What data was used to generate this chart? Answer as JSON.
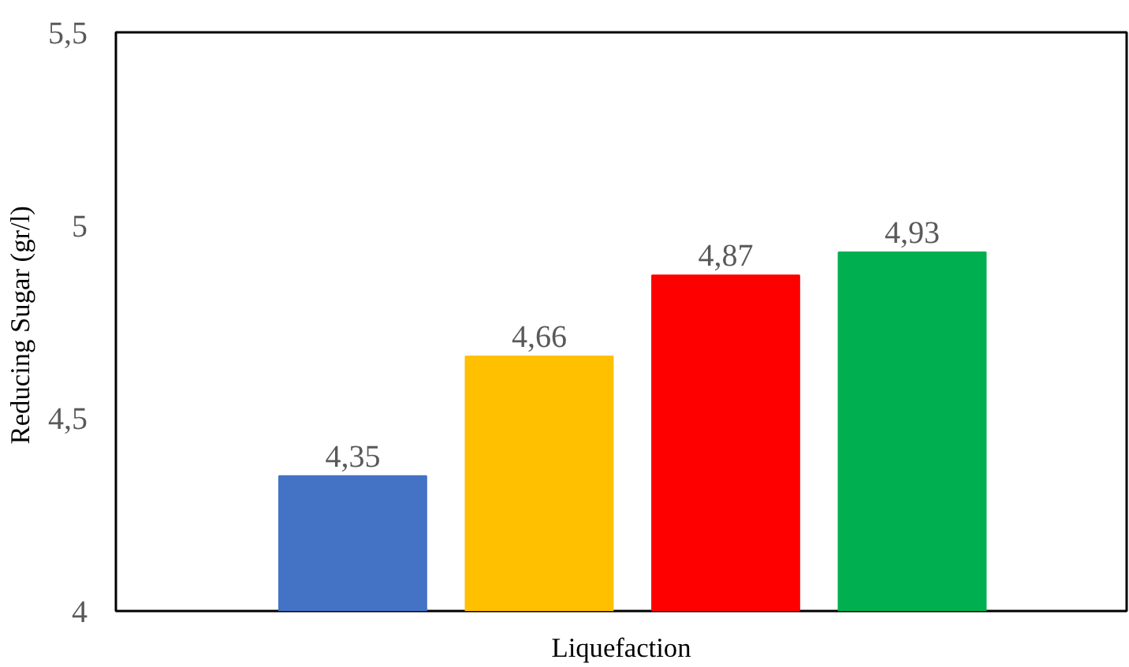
{
  "chart_data": {
    "type": "bar",
    "xlabel": "Liquefaction",
    "ylabel": "Reducing Sugar  (gr/l)",
    "categories": [
      null,
      null,
      null,
      null
    ],
    "values": [
      4.35,
      4.66,
      4.87,
      4.93
    ],
    "colors": [
      "#4472c4",
      "#ffc000",
      "#ff0000",
      "#00b050"
    ],
    "value_labels": [
      "4,35",
      "4,66",
      "4,87",
      "4,93"
    ],
    "ylim": [
      4,
      5.5
    ],
    "yticks": [
      4,
      {
        "value": 4.5,
        "label": "4,5"
      },
      5,
      {
        "value": 5.5,
        "label": "5,5"
      }
    ],
    "grid": false
  }
}
